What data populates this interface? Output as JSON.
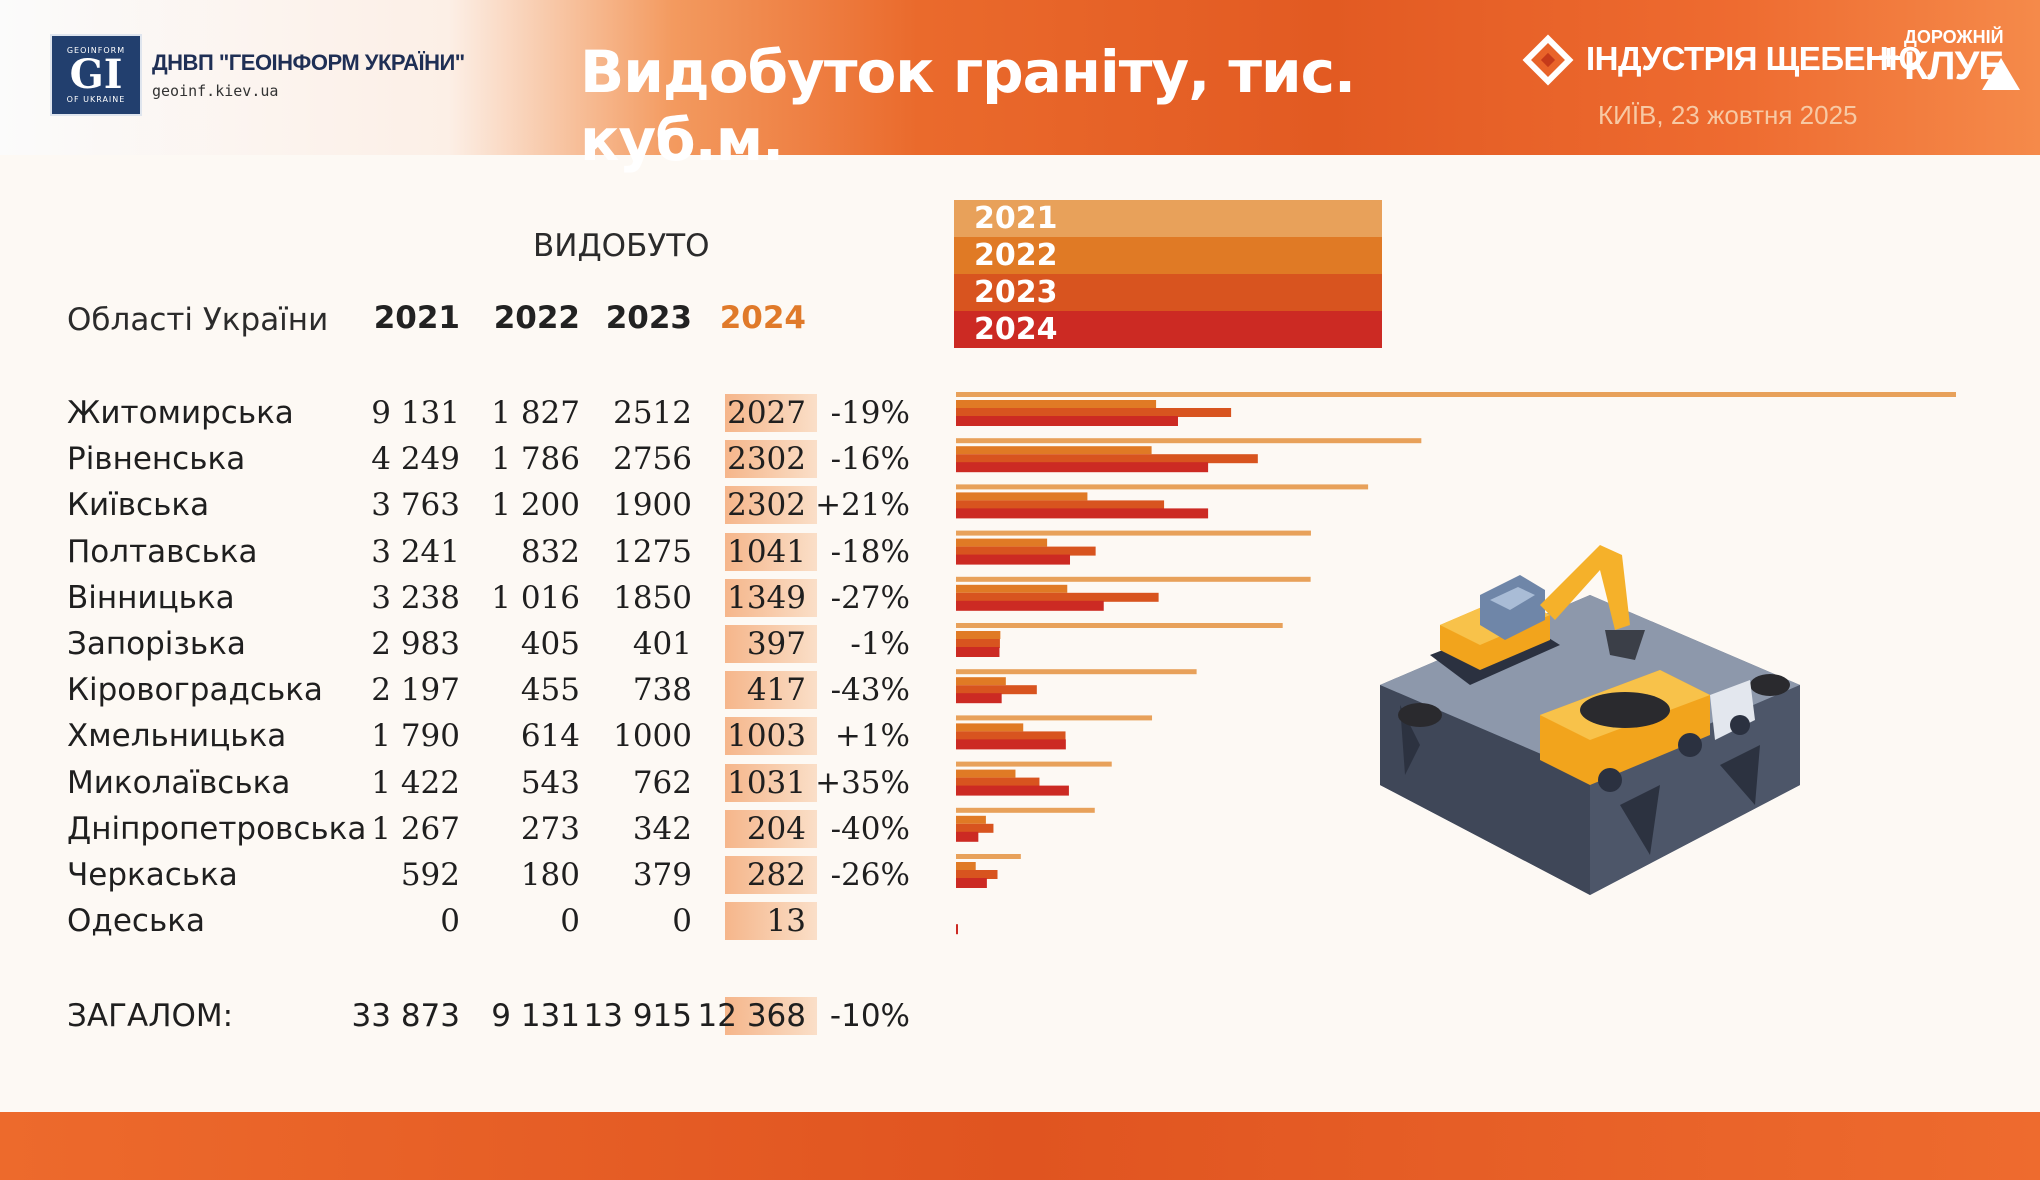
{
  "header": {
    "org_name": "ДНВП \"ГЕОІНФОРМ УКРАЇНИ\"",
    "org_url": "geoinf.kiev.ua",
    "logo_letters": "GI",
    "logo_top_text": "GEOINFORM",
    "logo_bottom_text": "OF UKRAINE",
    "title": "Видобуток граніту, тис. куб.м.",
    "event_name": "ІНДУСТРІЯ ЩЕБЕНЮ",
    "event_plus": "+",
    "club_line1": "ДОРОЖНІЙ",
    "club_line2": "КЛУБ",
    "event_date": "КИЇВ, 23 жовтня 2025"
  },
  "table": {
    "caption": "ВИДОБУТО",
    "region_header": "Області України",
    "year_headers": [
      "2021",
      "2022",
      "2023",
      "2024"
    ],
    "rows": [
      {
        "region": "Житомирська",
        "v2021": "9 131",
        "v2022": "1 827",
        "v2023": "2512",
        "v2024": "2027",
        "change": "-19%"
      },
      {
        "region": "Рівненська",
        "v2021": "4 249",
        "v2022": "1 786",
        "v2023": "2756",
        "v2024": "2302",
        "change": "-16%"
      },
      {
        "region": "Київська",
        "v2021": "3 763",
        "v2022": "1 200",
        "v2023": "1900",
        "v2024": "2302",
        "change": "+21%"
      },
      {
        "region": "Полтавська",
        "v2021": "3 241",
        "v2022": "832",
        "v2023": "1275",
        "v2024": "1041",
        "change": "-18%"
      },
      {
        "region": "Вінницька",
        "v2021": "3 238",
        "v2022": "1 016",
        "v2023": "1850",
        "v2024": "1349",
        "change": "-27%"
      },
      {
        "region": "Запорізька",
        "v2021": "2 983",
        "v2022": "405",
        "v2023": "401",
        "v2024": "397",
        "change": "-1%"
      },
      {
        "region": "Кіровоградська",
        "v2021": "2 197",
        "v2022": "455",
        "v2023": "738",
        "v2024": "417",
        "change": "-43%"
      },
      {
        "region": "Хмельницька",
        "v2021": "1 790",
        "v2022": "614",
        "v2023": "1000",
        "v2024": "1003",
        "change": "+1%"
      },
      {
        "region": "Миколаївська",
        "v2021": "1 422",
        "v2022": "543",
        "v2023": "762",
        "v2024": "1031",
        "change": "+35%"
      },
      {
        "region": "Дніпропетровська",
        "v2021": "1 267",
        "v2022": "273",
        "v2023": "342",
        "v2024": "204",
        "change": "-40%"
      },
      {
        "region": "Черкаська",
        "v2021": "592",
        "v2022": "180",
        "v2023": "379",
        "v2024": "282",
        "change": "-26%"
      },
      {
        "region": "Одеська",
        "v2021": "0",
        "v2022": "0",
        "v2023": "0",
        "v2024": "13",
        "change": ""
      }
    ],
    "total": {
      "label": "ЗАГАЛОМ:",
      "v2021": "33 873",
      "v2022": "9 131",
      "v2023": "13 915",
      "v2024": "12 368",
      "change": "-10%"
    }
  },
  "colors": {
    "c2021": "#e8a15a",
    "c2022": "#e07a25",
    "c2023": "#d8541f",
    "c2024": "#cc2a23",
    "accent": "#e25a22"
  },
  "chart_data": {
    "type": "bar",
    "orientation": "horizontal",
    "title": "Видобуток граніту, тис. куб.м.",
    "categories": [
      "Житомирська",
      "Рівненська",
      "Київська",
      "Полтавська",
      "Вінницька",
      "Запорізька",
      "Кіровоградська",
      "Хмельницька",
      "Миколаївська",
      "Дніпропетровська",
      "Черкаська",
      "Одеська"
    ],
    "series": [
      {
        "name": "2021",
        "values": [
          9131,
          4249,
          3763,
          3241,
          3238,
          2983,
          2197,
          1790,
          1422,
          1267,
          592,
          0
        ]
      },
      {
        "name": "2022",
        "values": [
          1827,
          1786,
          1200,
          832,
          1016,
          405,
          455,
          614,
          543,
          273,
          180,
          0
        ]
      },
      {
        "name": "2023",
        "values": [
          2512,
          2756,
          1900,
          1275,
          1850,
          401,
          738,
          1000,
          762,
          342,
          379,
          0
        ]
      },
      {
        "name": "2024",
        "values": [
          2027,
          2302,
          2302,
          1041,
          1349,
          397,
          417,
          1003,
          1031,
          204,
          282,
          13
        ]
      }
    ],
    "legend_position": "top",
    "grid": false
  }
}
